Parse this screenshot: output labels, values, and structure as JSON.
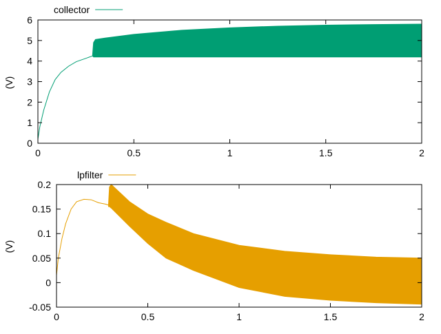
{
  "chart_data": [
    {
      "type": "line",
      "title": "",
      "xlabel": "",
      "ylabel": "(V)",
      "xlim": [
        0,
        2
      ],
      "ylim": [
        0,
        6
      ],
      "xticks": [
        "0",
        "0.5",
        "1",
        "1.5",
        "2"
      ],
      "yticks": [
        "0",
        "1",
        "2",
        "3",
        "4",
        "5",
        "6"
      ],
      "xtick_values": [
        0,
        0.5,
        1,
        1.5,
        2
      ],
      "ytick_values": [
        0,
        1,
        2,
        3,
        4,
        5,
        6
      ],
      "legend": {
        "label": "collector",
        "placement": "top-left-outside"
      },
      "color": "#009e73",
      "series": [
        {
          "name": "collector",
          "transient": {
            "x": [
              0,
              0.01,
              0.03,
              0.06,
              0.09,
              0.12,
              0.16,
              0.2,
              0.24,
              0.285
            ],
            "y": [
              0.2,
              0.8,
              1.6,
              2.5,
              3.1,
              3.45,
              3.75,
              3.97,
              4.1,
              4.25
            ]
          },
          "envelope": {
            "x": [
              0.285,
              0.29,
              0.3,
              0.35,
              0.5,
              0.75,
              1.0,
              1.25,
              1.5,
              1.75,
              2.0
            ],
            "upper": [
              4.3,
              4.9,
              5.05,
              5.12,
              5.3,
              5.5,
              5.62,
              5.7,
              5.75,
              5.78,
              5.8
            ],
            "lower": [
              4.25,
              4.2,
              4.2,
              4.2,
              4.2,
              4.2,
              4.2,
              4.2,
              4.2,
              4.2,
              4.2
            ]
          }
        }
      ]
    },
    {
      "type": "line",
      "title": "",
      "xlabel": "",
      "ylabel": "(V)",
      "xlim": [
        0,
        2
      ],
      "ylim": [
        -0.05,
        0.2
      ],
      "xticks": [
        "0",
        "0.5",
        "1",
        "1.5",
        "2"
      ],
      "yticks": [
        "-0.05",
        "0",
        "0.05",
        "0.1",
        "0.15",
        "0.2"
      ],
      "xtick_values": [
        0,
        0.5,
        1,
        1.5,
        2
      ],
      "ytick_values": [
        -0.05,
        0,
        0.05,
        0.1,
        0.15,
        0.2
      ],
      "legend": {
        "label": "lpfilter",
        "placement": "top-left-outside"
      },
      "color": "#e69f00",
      "series": [
        {
          "name": "lpfilter",
          "transient": {
            "x": [
              0,
              0.01,
              0.03,
              0.05,
              0.08,
              0.11,
              0.15,
              0.19,
              0.23,
              0.27,
              0.285
            ],
            "y": [
              0.015,
              0.05,
              0.09,
              0.12,
              0.15,
              0.165,
              0.17,
              0.169,
              0.163,
              0.16,
              0.158
            ]
          },
          "envelope": {
            "x": [
              0.285,
              0.29,
              0.3,
              0.4,
              0.5,
              0.6,
              0.75,
              1.0,
              1.25,
              1.5,
              1.75,
              2.0
            ],
            "upper": [
              0.16,
              0.195,
              0.2,
              0.165,
              0.14,
              0.123,
              0.1,
              0.076,
              0.064,
              0.057,
              0.052,
              0.05
            ],
            "lower": [
              0.155,
              0.155,
              0.152,
              0.115,
              0.08,
              0.05,
              0.025,
              -0.01,
              -0.028,
              -0.036,
              -0.041,
              -0.044
            ]
          }
        }
      ]
    }
  ]
}
